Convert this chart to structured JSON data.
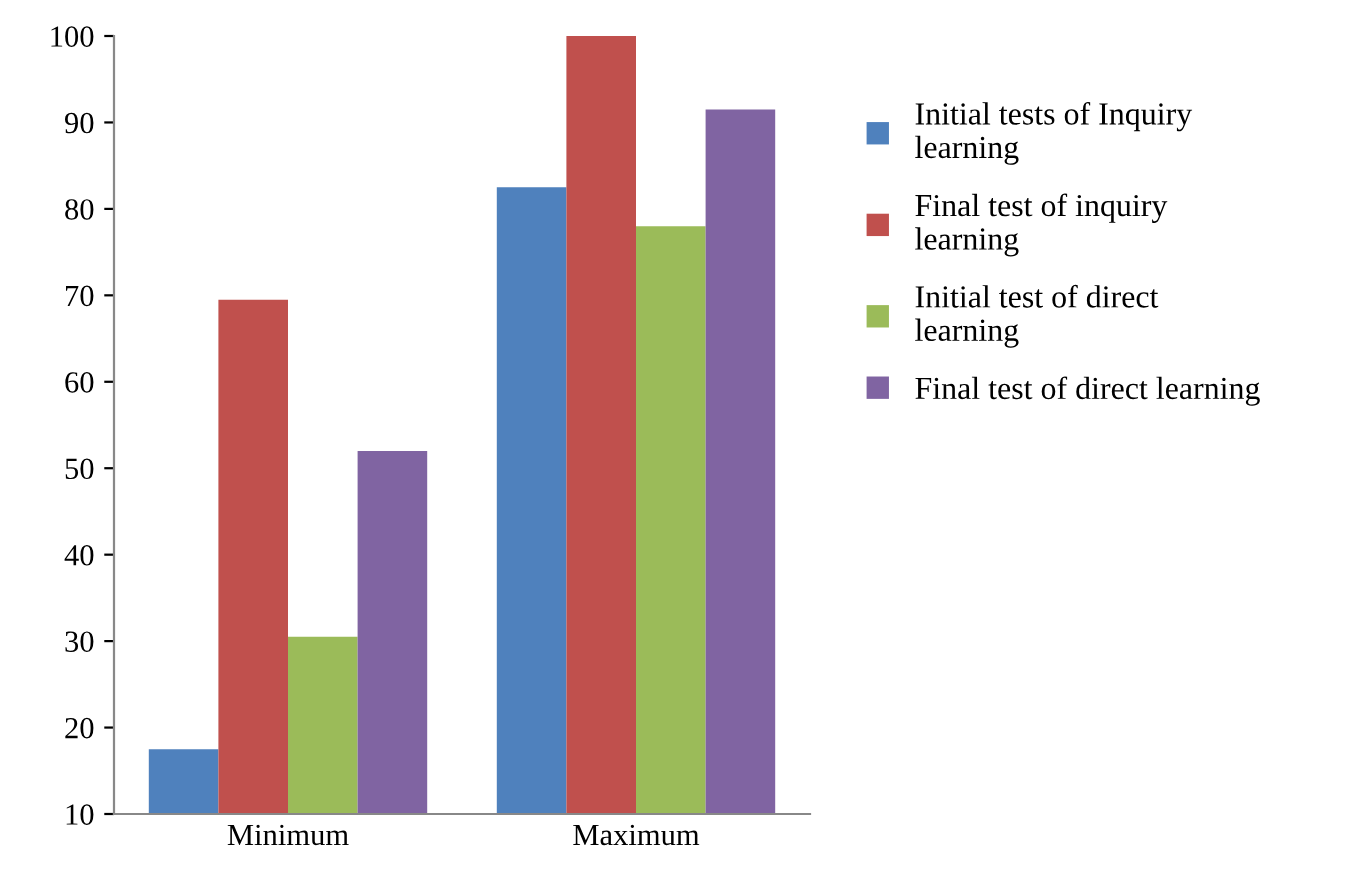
{
  "chart_data": {
    "type": "bar",
    "categories": [
      "Minimum",
      "Maximum"
    ],
    "series": [
      {
        "name": "Initial tests of Inquiry\nlearning",
        "color": "#4f81bd",
        "values": [
          17.5,
          82.5
        ]
      },
      {
        "name": "Final test of inquiry\nlearning",
        "color": "#c0504d",
        "values": [
          69.5,
          100
        ]
      },
      {
        "name": "Initial test of direct\nlearning",
        "color": "#9bbb59",
        "values": [
          30.5,
          78
        ]
      },
      {
        "name": "Final test of direct learning",
        "color": "#8064a2",
        "values": [
          52,
          91.5
        ]
      }
    ],
    "ylim": [
      10,
      100
    ],
    "yticks": [
      10,
      20,
      30,
      40,
      50,
      60,
      70,
      80,
      90,
      100
    ],
    "grid": false,
    "legend": "right"
  }
}
